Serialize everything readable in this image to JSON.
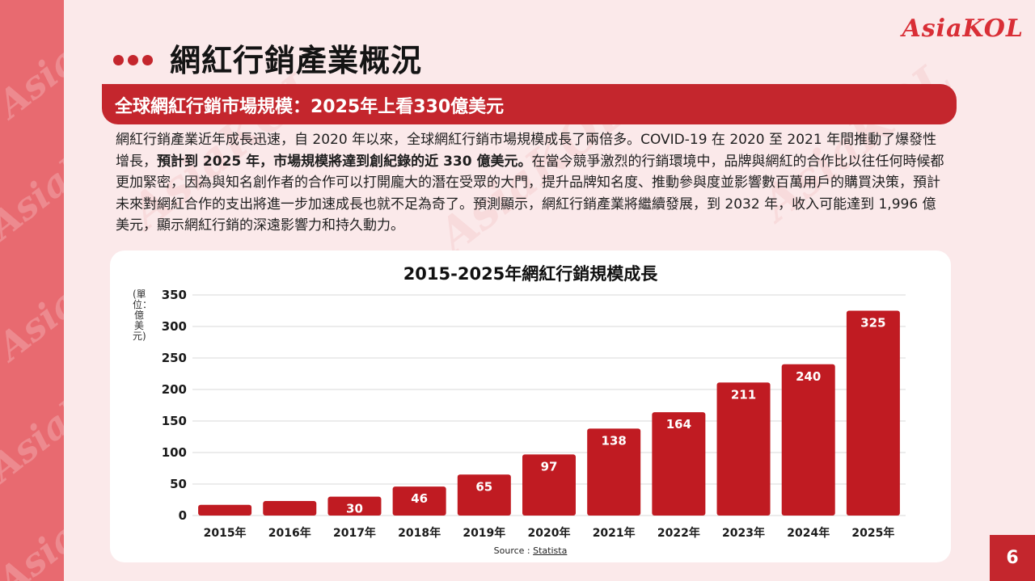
{
  "brand": {
    "logo_text": "AsiaKOL",
    "accent": "#c4262d",
    "watermark_text": "AsiaKOL"
  },
  "page": {
    "title": "網紅行銷產業概況",
    "subtitle": "全球網紅行銷市場規模：2025年上看330億美元",
    "paragraph": {
      "part1": "網紅行銷產業近年成長迅速，自 2020 年以來，全球網紅行銷市場規模成長了兩倍多。COVID-19 在 2020 至 2021 年間推動了爆發性增長，",
      "bold": "預計到 2025 年，市場規模將達到創紀錄的近 330 億美元。",
      "part2": "在當今競爭激烈的行銷環境中，品牌與網紅的合作比以往任何時候都更加緊密，因為與知名創作者的合作可以打開龐大的潛在受眾的大門，提升品牌知名度、推動參與度並影響數百萬用戶的購買決策，預計未來對網紅合作的支出將進一步加速成長也就不足為奇了。預測顯示，網紅行銷產業將繼續發展，到 2032 年，收入可能達到 1,996 億美元，顯示網紅行銷的深遠影響力和持久動力。"
    },
    "page_number": "6"
  },
  "chart_data": {
    "type": "bar",
    "title": "2015-2025年網紅行銷規模成長",
    "ylabel": "(單位：億美元)",
    "xlabel": "",
    "categories": [
      "2015年",
      "2016年",
      "2017年",
      "2018年",
      "2019年",
      "2020年",
      "2021年",
      "2022年",
      "2023年",
      "2024年",
      "2025年"
    ],
    "values": [
      17,
      23,
      30,
      46,
      65,
      97,
      138,
      164,
      211,
      240,
      325
    ],
    "data_labels": [
      "",
      "",
      "30",
      "46",
      "65",
      "97",
      "138",
      "164",
      "211",
      "240",
      "325"
    ],
    "ylim": [
      0,
      350
    ],
    "yticks": [
      0,
      50,
      100,
      150,
      200,
      250,
      300,
      350
    ],
    "grid": true,
    "bar_color": "#c01b22",
    "source_prefix": "Source : ",
    "source_link": "Statista"
  }
}
